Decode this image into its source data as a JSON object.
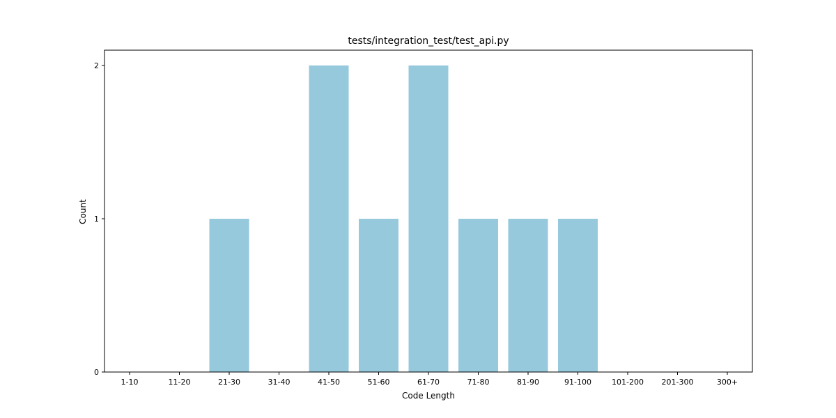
{
  "chart_data": {
    "type": "bar",
    "title": "tests/integration_test/test_api.py",
    "xlabel": "Code Length",
    "ylabel": "Count",
    "categories": [
      "1-10",
      "11-20",
      "21-30",
      "31-40",
      "41-50",
      "51-60",
      "61-70",
      "71-80",
      "81-90",
      "91-100",
      "101-200",
      "201-300",
      "300+"
    ],
    "values": [
      0,
      0,
      1,
      0,
      2,
      1,
      2,
      1,
      1,
      1,
      0,
      0,
      0
    ],
    "yticks": [
      0,
      1,
      2
    ],
    "ylim": [
      0,
      2.1
    ],
    "grid": false,
    "bar_color": "#96c9dc"
  }
}
